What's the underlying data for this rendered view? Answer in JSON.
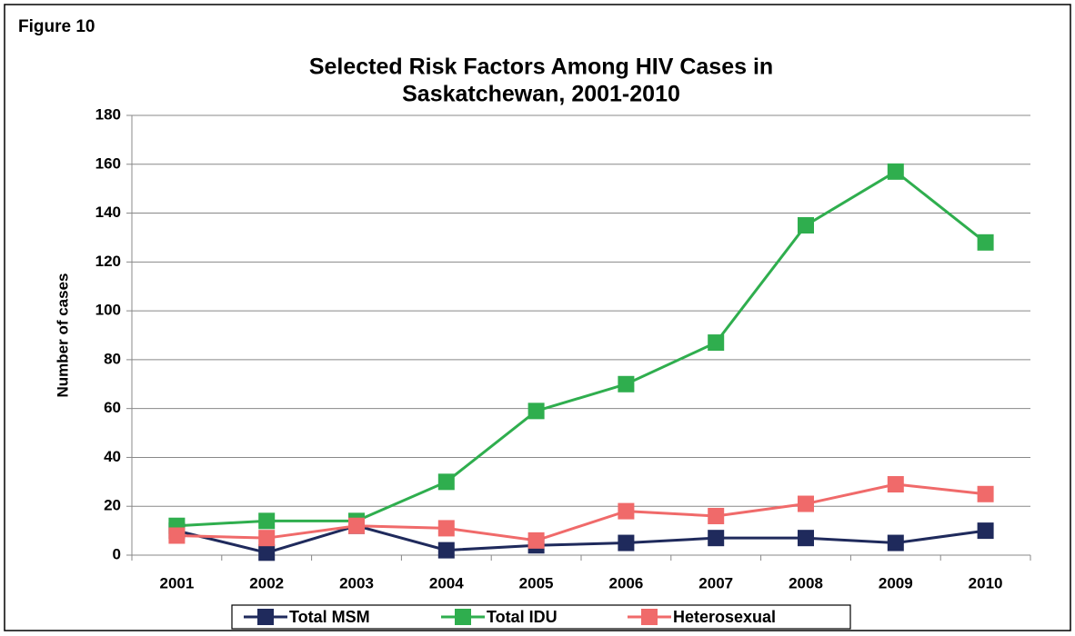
{
  "chart_data": {
    "type": "line",
    "figure_label": "Figure 10",
    "title": [
      "Selected Risk Factors Among HIV Cases in",
      "Saskatchewan, 2001-2010"
    ],
    "y_label": "Number of cases",
    "categories": [
      "2001",
      "2002",
      "2003",
      "2004",
      "2005",
      "2006",
      "2007",
      "2008",
      "2009",
      "2010"
    ],
    "series": [
      {
        "name": "Total MSM",
        "color": "#1f2a5c",
        "values": [
          10,
          1,
          12,
          2,
          4,
          5,
          7,
          7,
          5,
          10
        ]
      },
      {
        "name": "Total IDU",
        "color": "#2fae4e",
        "values": [
          12,
          14,
          14,
          30,
          59,
          70,
          87,
          135,
          157,
          128
        ]
      },
      {
        "name": "Heterosexual",
        "color": "#f06a6a",
        "values": [
          8,
          7,
          12,
          11,
          6,
          18,
          16,
          21,
          29,
          25
        ]
      }
    ],
    "ylim": [
      0,
      180
    ],
    "yticks": [
      0,
      20,
      40,
      60,
      80,
      100,
      120,
      140,
      160,
      180
    ],
    "grid": true,
    "legend": "bottom"
  }
}
